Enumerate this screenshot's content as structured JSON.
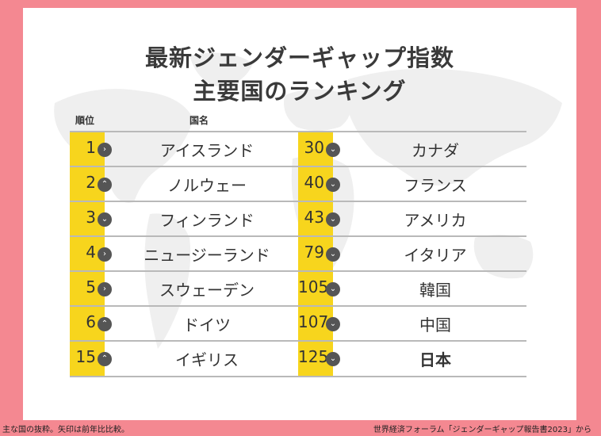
{
  "title": {
    "line1": "最新ジェンダーギャップ指数",
    "line2": "主要国のランキング"
  },
  "headers": {
    "rank": "順位",
    "country": "国名"
  },
  "left_rows": [
    {
      "rank": "1",
      "arrow": "right",
      "country": "アイスランド"
    },
    {
      "rank": "2",
      "arrow": "up",
      "country": "ノルウェー"
    },
    {
      "rank": "3",
      "arrow": "down",
      "country": "フィンランド"
    },
    {
      "rank": "4",
      "arrow": "right",
      "country": "ニュージーランド"
    },
    {
      "rank": "5",
      "arrow": "right",
      "country": "スウェーデン"
    },
    {
      "rank": "6",
      "arrow": "up",
      "country": "ドイツ"
    },
    {
      "rank": "15",
      "arrow": "up",
      "country": "イギリス"
    }
  ],
  "right_rows": [
    {
      "rank": "30",
      "arrow": "down",
      "country": "カナダ"
    },
    {
      "rank": "40",
      "arrow": "down",
      "country": "フランス"
    },
    {
      "rank": "43",
      "arrow": "down",
      "country": "アメリカ"
    },
    {
      "rank": "79",
      "arrow": "down",
      "country": "イタリア"
    },
    {
      "rank": "105",
      "arrow": "down",
      "country": "韓国"
    },
    {
      "rank": "107",
      "arrow": "down",
      "country": "中国"
    },
    {
      "rank": "125",
      "arrow": "down",
      "country": "日本",
      "highlight": true
    }
  ],
  "footer": {
    "note": "主な国の抜粋。矢印は前年比比較。",
    "source": "世界経済フォーラム「ジェンダーギャップ報告書2023」から"
  },
  "colors": {
    "background": "#f48891",
    "accent": "#f7d51d",
    "card": "#ffffff",
    "text": "#333333"
  }
}
